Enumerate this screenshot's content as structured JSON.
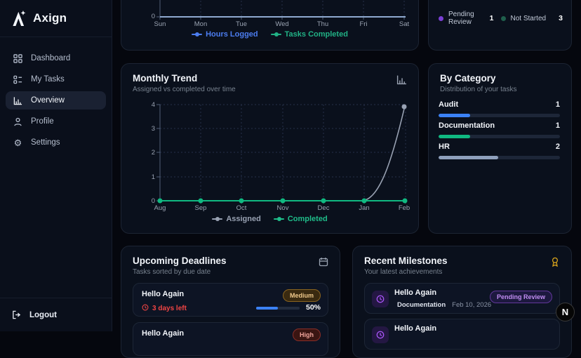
{
  "brand": {
    "name": "Axign"
  },
  "sidebar": {
    "items": [
      {
        "label": "Dashboard"
      },
      {
        "label": "My Tasks"
      },
      {
        "label": "Overview"
      },
      {
        "label": "Profile"
      },
      {
        "label": "Settings"
      }
    ],
    "logout_label": "Logout"
  },
  "weekly_chart": {
    "zero_label": "0",
    "days": [
      "Sun",
      "Mon",
      "Tue",
      "Wed",
      "Thu",
      "Fri",
      "Sat"
    ],
    "legend": [
      {
        "label": "Hours Logged",
        "color": "#4c7df0"
      },
      {
        "label": "Tasks Completed",
        "color": "#21b185"
      }
    ]
  },
  "status_card": {
    "items": [
      {
        "label": "Pending Review",
        "value": "1",
        "color": "#7a3fd4"
      },
      {
        "label": "Not Started",
        "value": "3",
        "color": "#1f5f4c"
      }
    ]
  },
  "monthly_trend": {
    "title": "Monthly Trend",
    "subtitle": "Assigned vs completed over time",
    "y_ticks": [
      "4",
      "3",
      "2",
      "1",
      "0"
    ],
    "months": [
      "Aug",
      "Sep",
      "Oct",
      "Nov",
      "Dec",
      "Jan",
      "Feb"
    ],
    "legend": [
      {
        "label": "Assigned",
        "color": "#99a2b3"
      },
      {
        "label": "Completed",
        "color": "#1fbd8a"
      }
    ]
  },
  "by_category": {
    "title": "By Category",
    "subtitle": "Distribution of your tasks",
    "items": [
      {
        "label": "Audit",
        "value": "1",
        "pct": 26,
        "color": "#3b82f6"
      },
      {
        "label": "Documentation",
        "value": "1",
        "pct": 26,
        "color": "#10b981"
      },
      {
        "label": "HR",
        "value": "2",
        "pct": 49,
        "color": "#8fa0bc"
      }
    ]
  },
  "deadlines": {
    "title": "Upcoming Deadlines",
    "subtitle": "Tasks sorted by due date",
    "items": [
      {
        "title": "Hello Again",
        "priority": "Medium",
        "due_text": "3 days left",
        "progress_pct": 50,
        "progress_label": "50%",
        "progress_color": "#3b82f6"
      },
      {
        "title": "Hello Again",
        "priority": "High"
      }
    ]
  },
  "milestones": {
    "title": "Recent Milestones",
    "subtitle": "Your latest achievements",
    "items": [
      {
        "title": "Hello Again",
        "category": "Documentation",
        "date": "Feb 10, 2026",
        "status": "Pending Review"
      },
      {
        "title": "Hello Again"
      }
    ]
  },
  "floating_badge": {
    "letter": "N"
  },
  "chart_data": [
    {
      "type": "line",
      "title": "Weekly activity (partially visible)",
      "categories": [
        "Sun",
        "Mon",
        "Tue",
        "Wed",
        "Thu",
        "Fri",
        "Sat"
      ],
      "series": [
        {
          "name": "Hours Logged",
          "values": [
            0,
            0,
            0,
            0,
            0,
            0,
            0
          ]
        },
        {
          "name": "Tasks Completed",
          "values": [
            0,
            0,
            0,
            0,
            0,
            0,
            0
          ]
        }
      ],
      "ylim": [
        0,
        null
      ],
      "grid": true,
      "legend_position": "bottom"
    },
    {
      "type": "line",
      "title": "Monthly Trend",
      "categories": [
        "Aug",
        "Sep",
        "Oct",
        "Nov",
        "Dec",
        "Jan",
        "Feb"
      ],
      "series": [
        {
          "name": "Assigned",
          "values": [
            0,
            0,
            0,
            0,
            0,
            0,
            4
          ]
        },
        {
          "name": "Completed",
          "values": [
            0,
            0,
            0,
            0,
            0,
            0,
            0
          ]
        }
      ],
      "ylim": [
        0,
        4
      ],
      "grid": true,
      "legend_position": "bottom"
    },
    {
      "type": "bar",
      "title": "By Category",
      "categories": [
        "Audit",
        "Documentation",
        "HR"
      ],
      "values": [
        1,
        1,
        2
      ],
      "xlabel": "",
      "ylabel": ""
    }
  ]
}
